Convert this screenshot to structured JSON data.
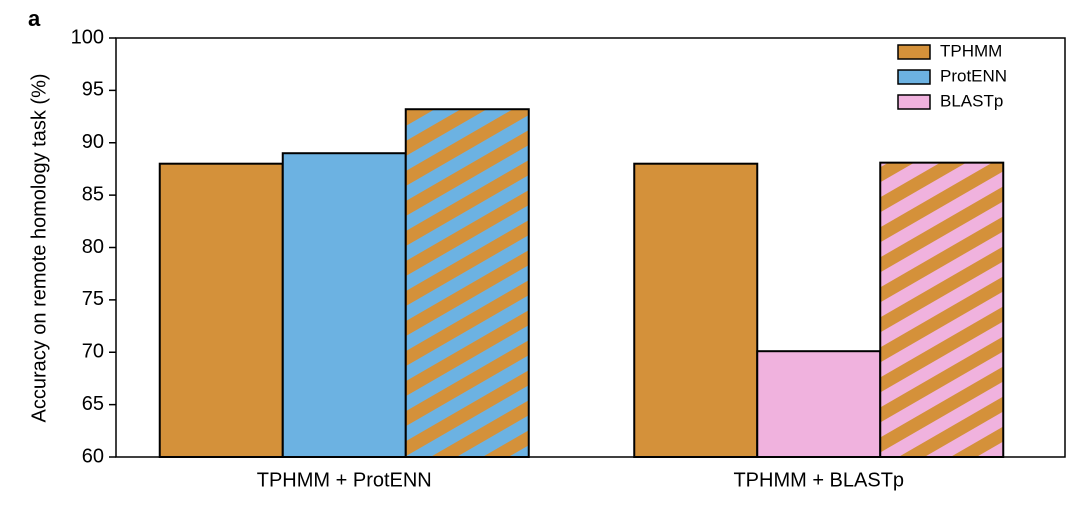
{
  "chart_data": {
    "type": "bar",
    "panel_label": "a",
    "y_label": "Accuracy on remote homology task (%)",
    "categories": [
      "TPHMM + ProtENN",
      "TPHMM + BLASTp"
    ],
    "series": [
      {
        "name": "TPHMM",
        "color": "#d4913a",
        "values": [
          88,
          88
        ]
      },
      {
        "name": "ProtENN",
        "color": "#6cb2e2",
        "values": [
          89,
          null
        ]
      },
      {
        "name": "BLASTp",
        "color": "#f0b2de",
        "values": [
          null,
          70.1
        ]
      }
    ],
    "combined": {
      "values": [
        93.2,
        88.1
      ],
      "base_color": "#d4913a",
      "stripe_colors": [
        "#6cb2e2",
        "#f0b2de"
      ]
    },
    "ylim": [
      60,
      100
    ],
    "yticks": [
      60,
      65,
      70,
      75,
      80,
      85,
      90,
      95,
      100
    ],
    "grid": false,
    "legend": "upper right"
  }
}
